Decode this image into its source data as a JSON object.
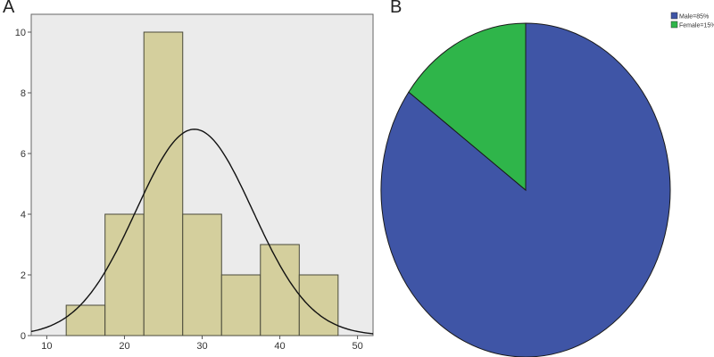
{
  "panels": {
    "a": "A",
    "b": "B"
  },
  "chart_data": [
    {
      "type": "bar",
      "subtype": "histogram",
      "bins": [
        {
          "start": 12.5,
          "end": 17.5,
          "count": 1
        },
        {
          "start": 17.5,
          "end": 22.5,
          "count": 4
        },
        {
          "start": 22.5,
          "end": 27.5,
          "count": 10
        },
        {
          "start": 27.5,
          "end": 32.5,
          "count": 4
        },
        {
          "start": 32.5,
          "end": 37.5,
          "count": 2
        },
        {
          "start": 37.5,
          "end": 42.5,
          "count": 3
        },
        {
          "start": 42.5,
          "end": 47.5,
          "count": 2
        }
      ],
      "normal_curve": {
        "mean": 29,
        "sd": 7.5,
        "peak": 6.8
      },
      "xlim": [
        8,
        52
      ],
      "ylim": [
        0,
        11
      ],
      "xticks": [
        10,
        20,
        30,
        40,
        50
      ],
      "yticks": [
        0,
        2,
        4,
        6,
        8,
        10
      ],
      "title": "",
      "xlabel": "",
      "ylabel": "",
      "colors": {
        "bar": "#d4cf9d",
        "bar_edge": "#4a4a3a",
        "background": "#ebebeb",
        "curve": "#111111"
      }
    },
    {
      "type": "pie",
      "slices": [
        {
          "label": "Male=85%",
          "value": 85,
          "color": "#3f55a6"
        },
        {
          "label": "Female=15%",
          "value": 15,
          "color": "#2fb54a"
        }
      ],
      "start_angle_deg": 0,
      "direction": "clockwise",
      "legend_position": "top-right"
    }
  ]
}
